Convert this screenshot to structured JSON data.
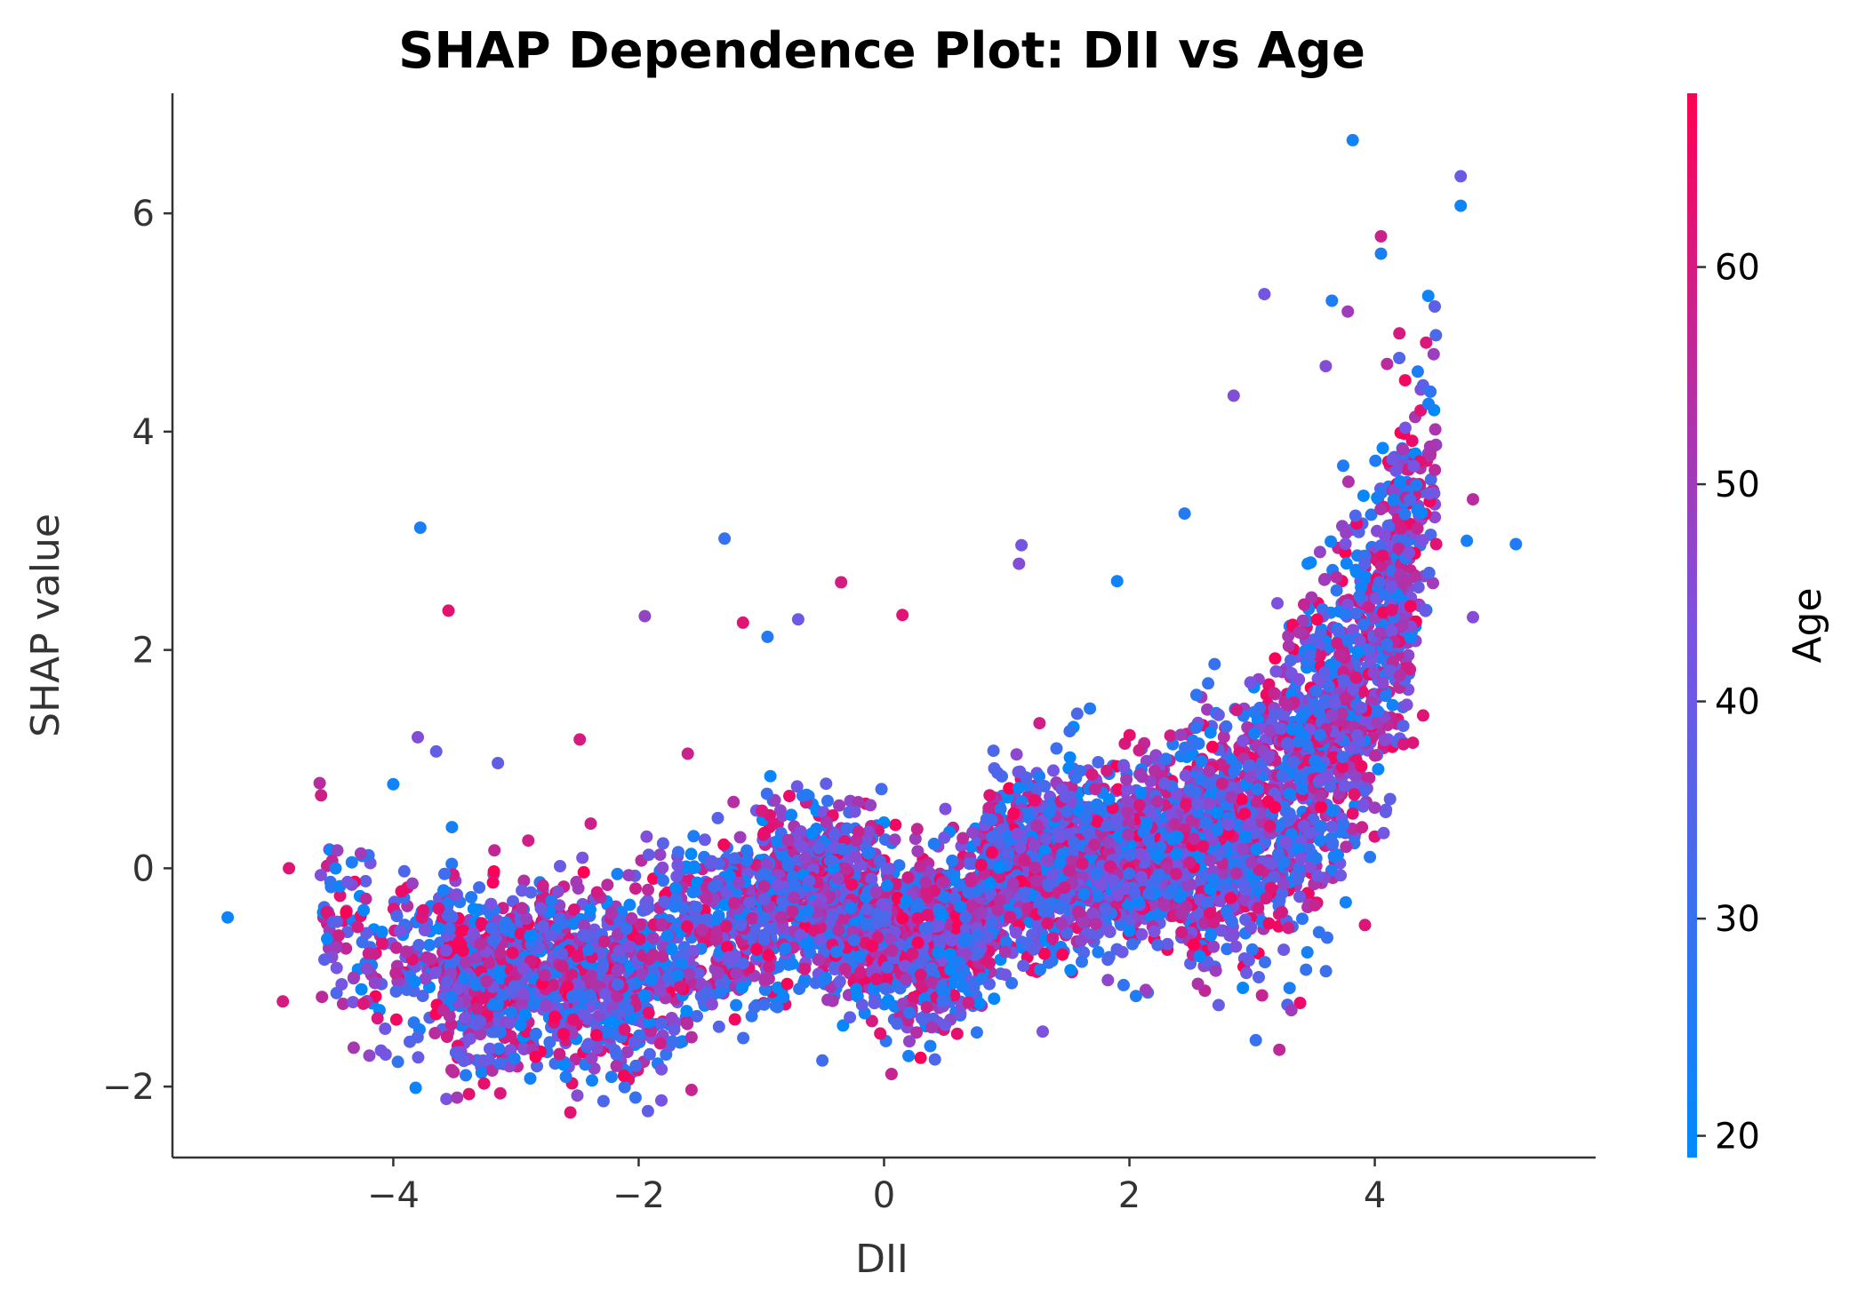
{
  "chart_data": {
    "type": "scatter",
    "title": "SHAP Dependence Plot: DII vs Age",
    "xlabel": "DII",
    "ylabel": "SHAP value",
    "xlim": [
      -5.8,
      5.8
    ],
    "ylim": [
      -2.65,
      7.1
    ],
    "x_ticks": [
      -4,
      -2,
      0,
      2,
      4
    ],
    "x_tick_labels": [
      "−4",
      "−2",
      "0",
      "2",
      "4"
    ],
    "y_ticks": [
      -2,
      0,
      2,
      4,
      6
    ],
    "y_tick_labels": [
      "−2",
      "0",
      "2",
      "4",
      "6"
    ],
    "grid": false,
    "colorbar": {
      "label": "Age",
      "range": [
        19,
        68
      ],
      "ticks": [
        20,
        30,
        40,
        50,
        60
      ],
      "tick_labels": [
        "20",
        "30",
        "40",
        "50",
        "60"
      ],
      "color_low": "#008afb",
      "color_mid": "#7c52e0",
      "color_high": "#ff0052"
    },
    "highlight_points": [
      {
        "x": -5.35,
        "y": -0.45,
        "age": 21
      },
      {
        "x": -4.9,
        "y": -1.22,
        "age": 60
      },
      {
        "x": -4.85,
        "y": 0.0,
        "age": 62
      },
      {
        "x": -4.6,
        "y": 0.78,
        "age": 55
      },
      {
        "x": -4.1,
        "y": -1.67,
        "age": 42
      },
      {
        "x": -4.0,
        "y": 0.77,
        "age": 22
      },
      {
        "x": -3.78,
        "y": 3.12,
        "age": 24
      },
      {
        "x": -3.8,
        "y": 1.2,
        "age": 45
      },
      {
        "x": -3.65,
        "y": 1.07,
        "age": 38
      },
      {
        "x": -3.55,
        "y": 2.36,
        "age": 63
      },
      {
        "x": -2.48,
        "y": 1.18,
        "age": 60
      },
      {
        "x": -1.95,
        "y": 2.31,
        "age": 48
      },
      {
        "x": -1.6,
        "y": 1.05,
        "age": 58
      },
      {
        "x": -1.3,
        "y": 3.02,
        "age": 30
      },
      {
        "x": -1.15,
        "y": 2.25,
        "age": 62
      },
      {
        "x": -0.95,
        "y": 2.12,
        "age": 26
      },
      {
        "x": -0.7,
        "y": 2.28,
        "age": 40
      },
      {
        "x": -0.35,
        "y": 2.62,
        "age": 60
      },
      {
        "x": 0.15,
        "y": 2.32,
        "age": 62
      },
      {
        "x": 0.2,
        "y": -1.72,
        "age": 24
      },
      {
        "x": 1.12,
        "y": 2.96,
        "age": 42
      },
      {
        "x": 1.1,
        "y": 2.79,
        "age": 45
      },
      {
        "x": 1.9,
        "y": 2.63,
        "age": 22
      },
      {
        "x": 2.45,
        "y": 3.25,
        "age": 26
      },
      {
        "x": 2.85,
        "y": 4.33,
        "age": 45
      },
      {
        "x": 3.1,
        "y": 5.26,
        "age": 42
      },
      {
        "x": 3.32,
        "y": -1.3,
        "age": 50
      },
      {
        "x": 3.45,
        "y": -0.77,
        "age": 24
      },
      {
        "x": 3.65,
        "y": 5.2,
        "age": 25
      },
      {
        "x": 3.78,
        "y": 5.1,
        "age": 50
      },
      {
        "x": 3.82,
        "y": 6.67,
        "age": 23
      },
      {
        "x": 3.6,
        "y": 4.6,
        "age": 45
      },
      {
        "x": 3.92,
        "y": -0.52,
        "age": 62
      },
      {
        "x": 4.05,
        "y": 5.79,
        "age": 58
      },
      {
        "x": 4.05,
        "y": 5.63,
        "age": 24
      },
      {
        "x": 4.2,
        "y": 4.9,
        "age": 60
      },
      {
        "x": 4.1,
        "y": 4.62,
        "age": 55
      },
      {
        "x": 4.35,
        "y": 4.55,
        "age": 25
      },
      {
        "x": 4.5,
        "y": 2.97,
        "age": 62
      },
      {
        "x": 4.7,
        "y": 6.34,
        "age": 40
      },
      {
        "x": 4.7,
        "y": 6.07,
        "age": 22
      },
      {
        "x": 4.75,
        "y": 3.0,
        "age": 24
      },
      {
        "x": 4.8,
        "y": 3.38,
        "age": 55
      },
      {
        "x": 4.8,
        "y": 2.3,
        "age": 45
      },
      {
        "x": 5.15,
        "y": 2.97,
        "age": 25
      }
    ],
    "bulk_points": {
      "count": 6500,
      "seed": 7,
      "x_range": [
        -4.6,
        4.5
      ],
      "age_range": [
        19,
        68
      ]
    }
  }
}
